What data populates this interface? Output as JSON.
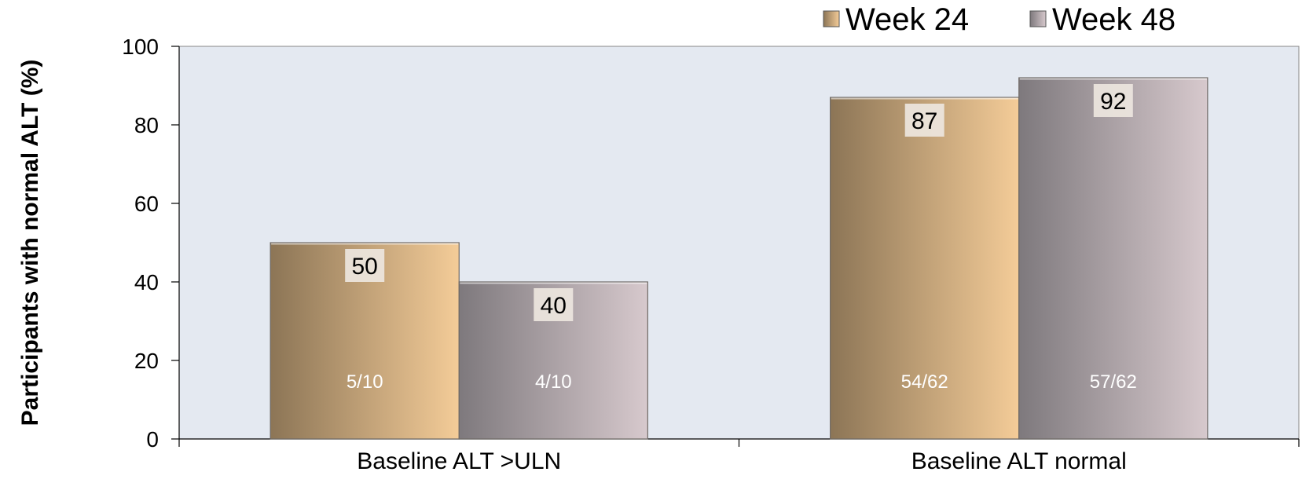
{
  "chart_data": {
    "type": "bar",
    "categories": [
      "Baseline ALT >ULN",
      "Baseline ALT normal"
    ],
    "series": [
      {
        "name": "Week 24",
        "values": [
          50,
          87
        ],
        "inner_labels": [
          "5/10",
          "54/62"
        ]
      },
      {
        "name": "Week 48",
        "values": [
          40,
          92
        ],
        "inner_labels": [
          "4/10",
          "57/62"
        ]
      }
    ],
    "ylabel": "Participants with normal ALT (%)",
    "xlabel": "",
    "ylim": [
      0,
      100
    ],
    "yticks": [
      "0",
      "20",
      "40",
      "60",
      "80",
      "100"
    ],
    "grid": false,
    "legend_position": "top-right",
    "colors": {
      "plot_background": "#E4E9F1",
      "week24_dark": "#8C7556",
      "week24_light": "#F4CC98",
      "week48_dark": "#7E797D",
      "week48_light": "#D7C9CD",
      "label_box": "#EDE6DE"
    }
  }
}
